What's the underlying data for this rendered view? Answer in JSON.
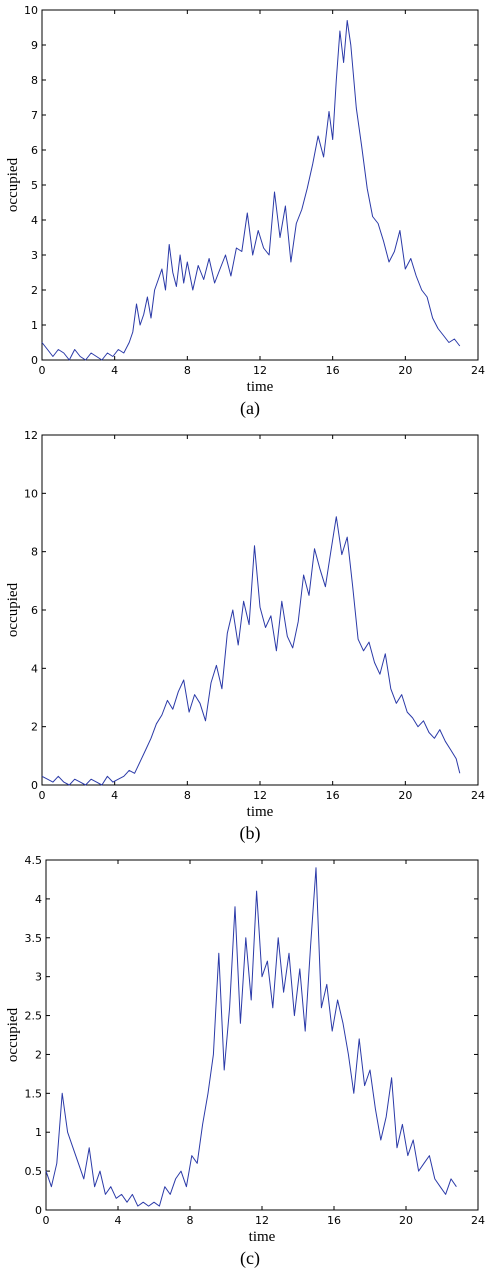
{
  "chart_data": [
    {
      "type": "line",
      "panel": "a",
      "caption": "(a)",
      "xlabel": "time",
      "ylabel": "occupied",
      "xlim": [
        0,
        24
      ],
      "ylim": [
        0,
        10
      ],
      "xticks": [
        "0",
        "4",
        "8",
        "12",
        "16",
        "20",
        "24"
      ],
      "yticks": [
        "0",
        "1",
        "2",
        "3",
        "4",
        "5",
        "6",
        "7",
        "8",
        "9",
        "10"
      ],
      "grid": false,
      "series": [
        {
          "x": [
            0,
            0.3,
            0.6,
            0.9,
            1.2,
            1.5,
            1.8,
            2.1,
            2.4,
            2.7,
            3.0,
            3.3,
            3.6,
            3.9,
            4.2,
            4.5,
            4.8,
            5.0,
            5.2,
            5.4,
            5.6,
            5.8,
            6.0,
            6.2,
            6.4,
            6.6,
            6.8,
            7.0,
            7.2,
            7.4,
            7.6,
            7.8,
            8.0,
            8.3,
            8.6,
            8.9,
            9.2,
            9.5,
            9.8,
            10.1,
            10.4,
            10.7,
            11.0,
            11.3,
            11.6,
            11.9,
            12.2,
            12.5,
            12.8,
            13.1,
            13.4,
            13.7,
            14.0,
            14.3,
            14.6,
            14.9,
            15.2,
            15.5,
            15.8,
            16.0,
            16.2,
            16.4,
            16.6,
            16.8,
            17.0,
            17.3,
            17.6,
            17.9,
            18.2,
            18.5,
            18.8,
            19.1,
            19.4,
            19.7,
            20.0,
            20.3,
            20.6,
            20.9,
            21.2,
            21.5,
            21.8,
            22.1,
            22.4,
            22.7,
            23.0
          ],
          "y": [
            0.5,
            0.3,
            0.1,
            0.3,
            0.2,
            0,
            0.3,
            0.1,
            0,
            0.2,
            0.1,
            0,
            0.2,
            0.1,
            0.3,
            0.2,
            0.5,
            0.8,
            1.6,
            1.0,
            1.3,
            1.8,
            1.2,
            2.0,
            2.3,
            2.6,
            2.0,
            3.3,
            2.5,
            2.1,
            3.0,
            2.2,
            2.8,
            2.0,
            2.7,
            2.3,
            2.9,
            2.2,
            2.6,
            3.0,
            2.4,
            3.2,
            3.1,
            4.2,
            3.0,
            3.7,
            3.2,
            3.0,
            4.8,
            3.5,
            4.4,
            2.8,
            3.9,
            4.3,
            4.9,
            5.6,
            6.4,
            5.8,
            7.1,
            6.3,
            8.0,
            9.4,
            8.5,
            9.7,
            9.0,
            7.2,
            6.1,
            4.9,
            4.1,
            3.9,
            3.4,
            2.8,
            3.1,
            3.7,
            2.6,
            2.9,
            2.4,
            2.0,
            1.8,
            1.2,
            0.9,
            0.7,
            0.5,
            0.6,
            0.4
          ]
        }
      ]
    },
    {
      "type": "line",
      "panel": "b",
      "caption": "(b)",
      "xlabel": "time",
      "ylabel": "occupied",
      "xlim": [
        0,
        24
      ],
      "ylim": [
        0,
        12
      ],
      "xticks": [
        "0",
        "4",
        "8",
        "12",
        "16",
        "20",
        "24"
      ],
      "yticks": [
        "0",
        "2",
        "4",
        "6",
        "8",
        "10",
        "12"
      ],
      "grid": false,
      "series": [
        {
          "x": [
            0,
            0.3,
            0.6,
            0.9,
            1.2,
            1.5,
            1.8,
            2.1,
            2.4,
            2.7,
            3.0,
            3.3,
            3.6,
            3.9,
            4.2,
            4.5,
            4.8,
            5.1,
            5.4,
            5.7,
            6.0,
            6.3,
            6.6,
            6.9,
            7.2,
            7.5,
            7.8,
            8.1,
            8.4,
            8.7,
            9.0,
            9.3,
            9.6,
            9.9,
            10.2,
            10.5,
            10.8,
            11.1,
            11.4,
            11.7,
            12.0,
            12.3,
            12.6,
            12.9,
            13.2,
            13.5,
            13.8,
            14.1,
            14.4,
            14.7,
            15.0,
            15.3,
            15.6,
            15.9,
            16.2,
            16.5,
            16.8,
            17.1,
            17.4,
            17.7,
            18.0,
            18.3,
            18.6,
            18.9,
            19.2,
            19.5,
            19.8,
            20.1,
            20.4,
            20.7,
            21.0,
            21.3,
            21.6,
            21.9,
            22.2,
            22.5,
            22.8,
            23.0
          ],
          "y": [
            0.3,
            0.2,
            0.1,
            0.3,
            0.1,
            0,
            0.2,
            0.1,
            0,
            0.2,
            0.1,
            0,
            0.3,
            0.1,
            0.2,
            0.3,
            0.5,
            0.4,
            0.8,
            1.2,
            1.6,
            2.1,
            2.4,
            2.9,
            2.6,
            3.2,
            3.6,
            2.5,
            3.1,
            2.8,
            2.2,
            3.5,
            4.1,
            3.3,
            5.2,
            6.0,
            4.8,
            6.3,
            5.5,
            8.2,
            6.1,
            5.4,
            5.8,
            4.6,
            6.3,
            5.1,
            4.7,
            5.6,
            7.2,
            6.5,
            8.1,
            7.4,
            6.8,
            8.0,
            9.2,
            7.9,
            8.5,
            6.8,
            5.0,
            4.6,
            4.9,
            4.2,
            3.8,
            4.5,
            3.3,
            2.8,
            3.1,
            2.5,
            2.3,
            2.0,
            2.2,
            1.8,
            1.6,
            1.9,
            1.5,
            1.2,
            0.9,
            0.4
          ]
        }
      ]
    },
    {
      "type": "line",
      "panel": "c",
      "caption": "(c)",
      "xlabel": "time",
      "ylabel": "occupied",
      "xlim": [
        0,
        24
      ],
      "ylim": [
        0,
        4.5
      ],
      "xticks": [
        "0",
        "4",
        "8",
        "12",
        "16",
        "20",
        "24"
      ],
      "yticks": [
        "0",
        "0.5",
        "1",
        "1.5",
        "2",
        "2.5",
        "3",
        "3.5",
        "4",
        "4.5"
      ],
      "grid": false,
      "series": [
        {
          "x": [
            0,
            0.3,
            0.6,
            0.9,
            1.2,
            1.5,
            1.8,
            2.1,
            2.4,
            2.7,
            3.0,
            3.3,
            3.6,
            3.9,
            4.2,
            4.5,
            4.8,
            5.1,
            5.4,
            5.7,
            6.0,
            6.3,
            6.6,
            6.9,
            7.2,
            7.5,
            7.8,
            8.1,
            8.4,
            8.7,
            9.0,
            9.3,
            9.6,
            9.9,
            10.2,
            10.5,
            10.8,
            11.1,
            11.4,
            11.7,
            12.0,
            12.3,
            12.6,
            12.9,
            13.2,
            13.5,
            13.8,
            14.1,
            14.4,
            14.7,
            15.0,
            15.3,
            15.6,
            15.9,
            16.2,
            16.5,
            16.8,
            17.1,
            17.4,
            17.7,
            18.0,
            18.3,
            18.6,
            18.9,
            19.2,
            19.5,
            19.8,
            20.1,
            20.4,
            20.7,
            21.0,
            21.3,
            21.6,
            21.9,
            22.2,
            22.5,
            22.8
          ],
          "y": [
            0.5,
            0.3,
            0.6,
            1.5,
            1.0,
            0.8,
            0.6,
            0.4,
            0.8,
            0.3,
            0.5,
            0.2,
            0.3,
            0.15,
            0.2,
            0.1,
            0.2,
            0.05,
            0.1,
            0.05,
            0.1,
            0.05,
            0.3,
            0.2,
            0.4,
            0.5,
            0.3,
            0.7,
            0.6,
            1.1,
            1.5,
            2.0,
            3.3,
            1.8,
            2.6,
            3.9,
            2.4,
            3.5,
            2.7,
            4.1,
            3.0,
            3.2,
            2.6,
            3.5,
            2.8,
            3.3,
            2.5,
            3.1,
            2.3,
            3.4,
            4.4,
            2.6,
            2.9,
            2.3,
            2.7,
            2.4,
            2.0,
            1.5,
            2.2,
            1.6,
            1.8,
            1.3,
            0.9,
            1.2,
            1.7,
            0.8,
            1.1,
            0.7,
            0.9,
            0.5,
            0.6,
            0.7,
            0.4,
            0.3,
            0.2,
            0.4,
            0.3
          ]
        }
      ]
    }
  ]
}
